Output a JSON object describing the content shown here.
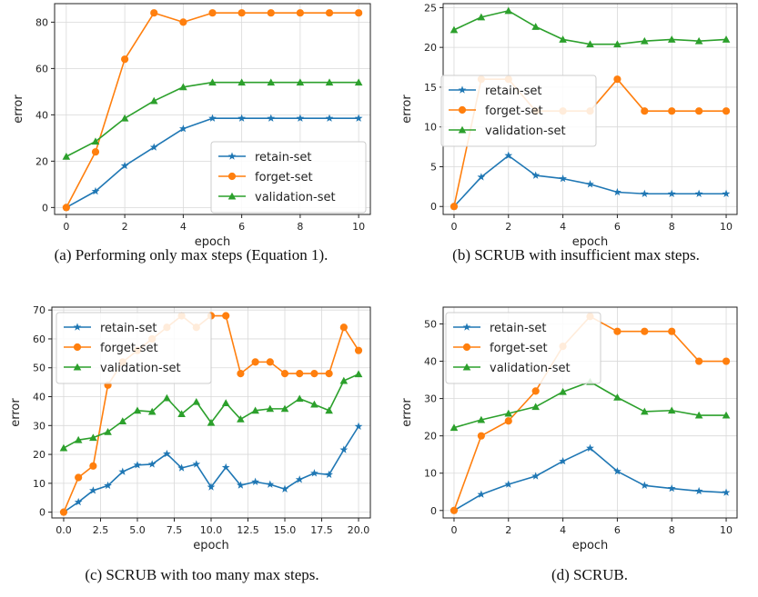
{
  "colors": {
    "retain": "#1f77b4",
    "forget": "#ff7f0e",
    "validation": "#2ca02c",
    "grid": "#d9d9d9"
  },
  "chart_data": [
    {
      "type": "line",
      "caption": "(a) Performing only max steps (Equation 1).",
      "xlabel": "epoch",
      "ylabel": "error",
      "xlim": [
        -0.4,
        10.4
      ],
      "ylim": [
        -3,
        88
      ],
      "xticks": [
        0,
        2,
        4,
        6,
        8,
        10
      ],
      "xtick_labels": [
        "0",
        "2",
        "4",
        "6",
        "8",
        "10"
      ],
      "yticks": [
        0,
        20,
        40,
        60,
        80
      ],
      "ytick_labels": [
        "0",
        "20",
        "40",
        "60",
        "80"
      ],
      "grid": true,
      "legend": "bottom-right",
      "x": [
        0,
        1,
        2,
        3,
        4,
        5,
        6,
        7,
        8,
        9,
        10
      ],
      "series": [
        {
          "name": "retain-set",
          "marker": "star",
          "color": "#1f77b4",
          "values": [
            0,
            7,
            18,
            26,
            34,
            38.5,
            38.5,
            38.5,
            38.5,
            38.5,
            38.5
          ]
        },
        {
          "name": "forget-set",
          "marker": "circle",
          "color": "#ff7f0e",
          "values": [
            0,
            24,
            64,
            84,
            80,
            84,
            84,
            84,
            84,
            84,
            84
          ]
        },
        {
          "name": "validation-set",
          "marker": "triangle",
          "color": "#2ca02c",
          "values": [
            22,
            28.5,
            38.5,
            46,
            52,
            54,
            54,
            54,
            54,
            54,
            54
          ]
        }
      ]
    },
    {
      "type": "line",
      "caption": "(b) SCRUB with insufficient max steps.",
      "xlabel": "epoch",
      "ylabel": "error",
      "xlim": [
        -0.4,
        10.4
      ],
      "ylim": [
        -1,
        25.5
      ],
      "xticks": [
        0,
        2,
        4,
        6,
        8,
        10
      ],
      "xtick_labels": [
        "0",
        "2",
        "4",
        "6",
        "8",
        "10"
      ],
      "yticks": [
        0,
        5,
        10,
        15,
        20,
        25
      ],
      "ytick_labels": [
        "0",
        "5",
        "10",
        "15",
        "20",
        "25"
      ],
      "grid": true,
      "legend": "center-left",
      "x": [
        0,
        1,
        2,
        3,
        4,
        5,
        6,
        7,
        8,
        9,
        10
      ],
      "series": [
        {
          "name": "retain-set",
          "marker": "star",
          "color": "#1f77b4",
          "values": [
            0,
            3.7,
            6.4,
            3.9,
            3.5,
            2.8,
            1.8,
            1.6,
            1.6,
            1.6,
            1.6
          ]
        },
        {
          "name": "forget-set",
          "marker": "circle",
          "color": "#ff7f0e",
          "values": [
            0,
            16,
            16,
            12,
            12,
            12,
            16,
            12,
            12,
            12,
            12
          ]
        },
        {
          "name": "validation-set",
          "marker": "triangle",
          "color": "#2ca02c",
          "values": [
            22.2,
            23.8,
            24.6,
            22.6,
            21,
            20.4,
            20.4,
            20.8,
            21,
            20.8,
            21
          ]
        }
      ]
    },
    {
      "type": "line",
      "caption": "(c) SCRUB with too many max steps.",
      "xlabel": "epoch",
      "ylabel": "error",
      "xlim": [
        -0.8,
        20.8
      ],
      "ylim": [
        -2,
        71
      ],
      "xticks": [
        0,
        2.5,
        5,
        7.5,
        10,
        12.5,
        15,
        17.5,
        20
      ],
      "xtick_labels": [
        "0.0",
        "2.5",
        "5.0",
        "7.5",
        "10.0",
        "12.5",
        "15.0",
        "17.5",
        "20.0"
      ],
      "yticks": [
        0,
        10,
        20,
        30,
        40,
        50,
        60,
        70
      ],
      "ytick_labels": [
        "0",
        "10",
        "20",
        "30",
        "40",
        "50",
        "60",
        "70"
      ],
      "grid": true,
      "legend": "top-left",
      "x": [
        0,
        1,
        2,
        3,
        4,
        5,
        6,
        7,
        8,
        9,
        10,
        11,
        12,
        13,
        14,
        15,
        16,
        17,
        18,
        19,
        20
      ],
      "series": [
        {
          "name": "retain-set",
          "marker": "star",
          "color": "#1f77b4",
          "values": [
            0,
            3.5,
            7.5,
            9.2,
            14,
            16.3,
            16.6,
            20.2,
            15.3,
            16.6,
            8.7,
            15.5,
            9.3,
            10.5,
            9.6,
            8,
            11.3,
            13.5,
            13,
            21.6,
            29.7
          ]
        },
        {
          "name": "forget-set",
          "marker": "circle",
          "color": "#ff7f0e",
          "values": [
            0,
            12,
            16,
            44,
            52,
            56,
            60,
            64,
            68,
            64,
            68,
            68,
            48,
            52,
            52,
            48,
            48,
            48,
            48,
            64,
            56
          ]
        },
        {
          "name": "validation-set",
          "marker": "triangle",
          "color": "#2ca02c",
          "values": [
            22.2,
            25,
            25.8,
            27.8,
            31.5,
            35.2,
            34.8,
            39.5,
            34,
            38.2,
            31,
            37.8,
            32.2,
            35.2,
            35.8,
            35.8,
            39.3,
            37.3,
            35.2,
            45.5,
            47.8
          ]
        }
      ]
    },
    {
      "type": "line",
      "caption": "(d) SCRUB.",
      "xlabel": "epoch",
      "ylabel": "error",
      "xlim": [
        -0.4,
        10.4
      ],
      "ylim": [
        -2,
        54.5
      ],
      "xticks": [
        0,
        2,
        4,
        6,
        8,
        10
      ],
      "xtick_labels": [
        "0",
        "2",
        "4",
        "6",
        "8",
        "10"
      ],
      "yticks": [
        0,
        10,
        20,
        30,
        40,
        50
      ],
      "ytick_labels": [
        "0",
        "10",
        "20",
        "30",
        "40",
        "50"
      ],
      "grid": true,
      "legend": "top-left",
      "x": [
        0,
        1,
        2,
        3,
        4,
        5,
        6,
        7,
        8,
        9,
        10
      ],
      "series": [
        {
          "name": "retain-set",
          "marker": "star",
          "color": "#1f77b4",
          "values": [
            0,
            4.3,
            7,
            9.2,
            13.2,
            16.7,
            10.5,
            6.7,
            5.9,
            5.2,
            4.8
          ]
        },
        {
          "name": "forget-set",
          "marker": "circle",
          "color": "#ff7f0e",
          "values": [
            0,
            20,
            24,
            32,
            44,
            52,
            48,
            48,
            48,
            40,
            40
          ]
        },
        {
          "name": "validation-set",
          "marker": "triangle",
          "color": "#2ca02c",
          "values": [
            22.2,
            24.3,
            26,
            27.8,
            31.8,
            34.5,
            30.3,
            26.5,
            26.8,
            25.5,
            25.5
          ]
        }
      ]
    }
  ]
}
